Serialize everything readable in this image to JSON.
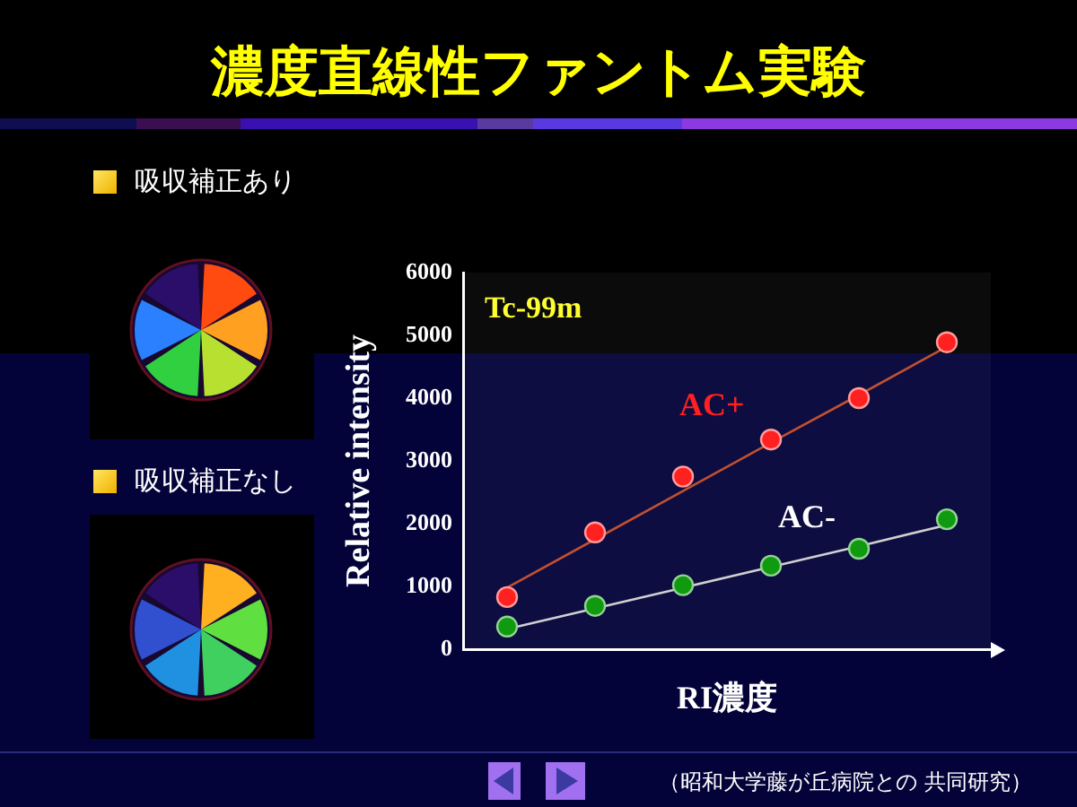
{
  "chart_data": {
    "type": "scatter",
    "title": "濃度直線性ファントム実験",
    "xlabel": "RI濃度",
    "ylabel": "Relative intensity",
    "categories": [
      null,
      null,
      null,
      null,
      null,
      null
    ],
    "series": [
      {
        "name": "AC+",
        "type": "scatter",
        "marker": "circle",
        "color": "#ff2020",
        "values": [
          830,
          1860,
          2750,
          3340,
          4000,
          4890
        ]
      },
      {
        "type": "line",
        "marker": "none",
        "color": "#c05030",
        "values": [
          980,
          1750,
          2520,
          3290,
          4050,
          4820
        ]
      },
      {
        "name": "AC-",
        "type": "scatter",
        "marker": "circle",
        "color": "#109a10",
        "values": [
          360,
          690,
          1020,
          1330,
          1600,
          2070
        ]
      },
      {
        "type": "line",
        "marker": "none",
        "color": "#d0d0d0",
        "values": [
          320,
          650,
          980,
          1310,
          1640,
          1980
        ]
      }
    ],
    "ylim": [
      0,
      6000
    ],
    "yticks": [
      0,
      1000,
      2000,
      3000,
      4000,
      5000,
      6000
    ],
    "grid": false,
    "legend": false,
    "tick_labels": "y",
    "annotations": [
      "Tc-99m",
      "吸収補正あり",
      "吸収補正なし",
      "（昭和大学藤が丘病院との 共同研究）"
    ]
  }
}
